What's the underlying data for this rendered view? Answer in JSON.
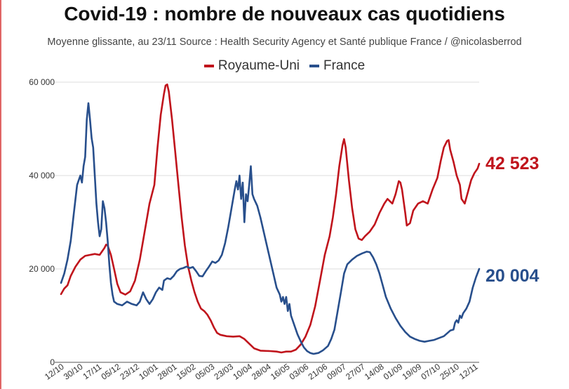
{
  "title": "Covid-19 : nombre de nouveaux cas quotidiens",
  "subtitle": "Moyenne glissante, au 23/11 Source : Health Security Agency et Santé publique France  / @nicolasberrod",
  "colors": {
    "uk": "#c0141c",
    "france": "#284f8c",
    "grid": "#dcdcdc"
  },
  "chart_data": {
    "type": "line",
    "title": "Covid-19 : nombre de nouveaux cas quotidiens",
    "ylim": [
      0,
      60000
    ],
    "y_ticks": [
      0,
      20000,
      40000,
      60000
    ],
    "y_tick_labels": [
      "0",
      "20 000",
      "40 000",
      "60 000"
    ],
    "x_ticks": [
      "12/10",
      "30/10",
      "17/11",
      "05/12",
      "23/12",
      "10/01",
      "28/01",
      "15/02",
      "05/03",
      "23/03",
      "10/04",
      "28/04",
      "16/05",
      "03/06",
      "21/06",
      "09/07",
      "27/07",
      "14/08",
      "01/09",
      "19/09",
      "07/10",
      "25/10",
      "12/11"
    ],
    "legend": [
      "Royaume-Uni",
      "France"
    ],
    "series": [
      {
        "name": "Royaume-Uni",
        "color": "#c0141c",
        "end_label": "42 523",
        "points": [
          [
            0,
            14600
          ],
          [
            2,
            15800
          ],
          [
            4,
            16500
          ],
          [
            6,
            18500
          ],
          [
            9,
            20500
          ],
          [
            12,
            22000
          ],
          [
            15,
            22800
          ],
          [
            18,
            23000
          ],
          [
            21,
            23200
          ],
          [
            24,
            23000
          ],
          [
            27,
            24500
          ],
          [
            28,
            25200
          ],
          [
            29,
            25000
          ],
          [
            31,
            23000
          ],
          [
            33,
            20000
          ],
          [
            35,
            16800
          ],
          [
            37,
            15000
          ],
          [
            40,
            14500
          ],
          [
            43,
            15200
          ],
          [
            46,
            17500
          ],
          [
            49,
            22000
          ],
          [
            52,
            28000
          ],
          [
            55,
            34000
          ],
          [
            58,
            38000
          ],
          [
            60,
            46000
          ],
          [
            62,
            53000
          ],
          [
            64,
            57500
          ],
          [
            65,
            59300
          ],
          [
            66,
            59500
          ],
          [
            67,
            58000
          ],
          [
            69,
            52000
          ],
          [
            71,
            45000
          ],
          [
            73,
            38000
          ],
          [
            75,
            31000
          ],
          [
            77,
            25000
          ],
          [
            79,
            20500
          ],
          [
            81,
            17500
          ],
          [
            83,
            15000
          ],
          [
            85,
            13000
          ],
          [
            87,
            11500
          ],
          [
            89,
            11000
          ],
          [
            91,
            10200
          ],
          [
            93,
            9000
          ],
          [
            95,
            7500
          ],
          [
            97,
            6300
          ],
          [
            99,
            5900
          ],
          [
            103,
            5600
          ],
          [
            107,
            5500
          ],
          [
            111,
            5600
          ],
          [
            114,
            5000
          ],
          [
            117,
            4000
          ],
          [
            120,
            3000
          ],
          [
            124,
            2500
          ],
          [
            130,
            2400
          ],
          [
            134,
            2300
          ],
          [
            137,
            2100
          ],
          [
            140,
            2300
          ],
          [
            143,
            2300
          ],
          [
            146,
            2700
          ],
          [
            149,
            3800
          ],
          [
            152,
            5500
          ],
          [
            155,
            8000
          ],
          [
            158,
            12000
          ],
          [
            161,
            17500
          ],
          [
            164,
            23000
          ],
          [
            167,
            27000
          ],
          [
            169,
            31000
          ],
          [
            171,
            36000
          ],
          [
            173,
            42000
          ],
          [
            175,
            46500
          ],
          [
            176,
            47800
          ],
          [
            177,
            46000
          ],
          [
            179,
            39000
          ],
          [
            181,
            33000
          ],
          [
            183,
            28500
          ],
          [
            185,
            26500
          ],
          [
            187,
            26200
          ],
          [
            189,
            27000
          ],
          [
            192,
            28000
          ],
          [
            195,
            29500
          ],
          [
            198,
            32000
          ],
          [
            201,
            34000
          ],
          [
            203,
            35000
          ],
          [
            206,
            34000
          ],
          [
            208,
            36000
          ],
          [
            210,
            38800
          ],
          [
            211,
            38500
          ],
          [
            212,
            37000
          ],
          [
            214,
            32000
          ],
          [
            215,
            29300
          ],
          [
            217,
            29800
          ],
          [
            219,
            32500
          ],
          [
            222,
            34000
          ],
          [
            225,
            34500
          ],
          [
            228,
            34000
          ],
          [
            231,
            37000
          ],
          [
            234,
            39500
          ],
          [
            236,
            43000
          ],
          [
            238,
            46000
          ],
          [
            240,
            47400
          ],
          [
            241,
            47600
          ],
          [
            242,
            45500
          ],
          [
            244,
            43000
          ],
          [
            246,
            40000
          ],
          [
            248,
            38000
          ],
          [
            249,
            35000
          ],
          [
            251,
            34000
          ],
          [
            253,
            36500
          ],
          [
            255,
            39000
          ],
          [
            257,
            40500
          ],
          [
            259,
            41500
          ],
          [
            260,
            42523
          ]
        ]
      },
      {
        "name": "France",
        "color": "#284f8c",
        "end_label": "20 004",
        "points": [
          [
            0,
            17000
          ],
          [
            2,
            19000
          ],
          [
            4,
            22000
          ],
          [
            6,
            26000
          ],
          [
            8,
            32000
          ],
          [
            10,
            38000
          ],
          [
            12,
            40000
          ],
          [
            13,
            38500
          ],
          [
            14,
            42000
          ],
          [
            15,
            44000
          ],
          [
            16,
            52000
          ],
          [
            17,
            55500
          ],
          [
            18,
            52000
          ],
          [
            19,
            48000
          ],
          [
            20,
            46000
          ],
          [
            21,
            40000
          ],
          [
            22,
            34000
          ],
          [
            23,
            30000
          ],
          [
            24,
            27000
          ],
          [
            25,
            28500
          ],
          [
            26,
            34500
          ],
          [
            27,
            33000
          ],
          [
            28,
            30000
          ],
          [
            29,
            26000
          ],
          [
            30,
            21000
          ],
          [
            31,
            17000
          ],
          [
            32,
            14500
          ],
          [
            33,
            13000
          ],
          [
            35,
            12500
          ],
          [
            38,
            12200
          ],
          [
            41,
            13000
          ],
          [
            44,
            12500
          ],
          [
            47,
            12200
          ],
          [
            49,
            13000
          ],
          [
            51,
            15000
          ],
          [
            53,
            13500
          ],
          [
            55,
            12500
          ],
          [
            57,
            13500
          ],
          [
            59,
            15000
          ],
          [
            61,
            16000
          ],
          [
            63,
            15500
          ],
          [
            64,
            17500
          ],
          [
            66,
            18000
          ],
          [
            68,
            17800
          ],
          [
            70,
            18500
          ],
          [
            72,
            19500
          ],
          [
            74,
            20000
          ],
          [
            76,
            20200
          ],
          [
            78,
            20500
          ],
          [
            80,
            20200
          ],
          [
            82,
            20400
          ],
          [
            84,
            19500
          ],
          [
            86,
            18500
          ],
          [
            88,
            18400
          ],
          [
            90,
            19500
          ],
          [
            92,
            20500
          ],
          [
            94,
            21600
          ],
          [
            96,
            21300
          ],
          [
            98,
            21800
          ],
          [
            100,
            23000
          ],
          [
            102,
            25500
          ],
          [
            104,
            29000
          ],
          [
            106,
            33000
          ],
          [
            108,
            37000
          ],
          [
            109,
            38800
          ],
          [
            110,
            37000
          ],
          [
            111,
            40000
          ],
          [
            112,
            35000
          ],
          [
            113,
            38500
          ],
          [
            114,
            30000
          ],
          [
            115,
            36000
          ],
          [
            116,
            34500
          ],
          [
            117,
            38000
          ],
          [
            118,
            42000
          ],
          [
            119,
            36000
          ],
          [
            120,
            35000
          ],
          [
            122,
            33500
          ],
          [
            124,
            31000
          ],
          [
            126,
            28000
          ],
          [
            128,
            25000
          ],
          [
            130,
            22000
          ],
          [
            132,
            19000
          ],
          [
            134,
            16000
          ],
          [
            136,
            14500
          ],
          [
            137,
            13000
          ],
          [
            138,
            14000
          ],
          [
            139,
            12500
          ],
          [
            140,
            14000
          ],
          [
            141,
            11000
          ],
          [
            142,
            12500
          ],
          [
            143,
            10000
          ],
          [
            145,
            8000
          ],
          [
            147,
            6000
          ],
          [
            149,
            4500
          ],
          [
            151,
            3200
          ],
          [
            153,
            2400
          ],
          [
            155,
            2000
          ],
          [
            157,
            1800
          ],
          [
            160,
            2000
          ],
          [
            163,
            2600
          ],
          [
            166,
            3500
          ],
          [
            168,
            5000
          ],
          [
            170,
            7000
          ],
          [
            172,
            11000
          ],
          [
            174,
            15000
          ],
          [
            176,
            19000
          ],
          [
            178,
            21000
          ],
          [
            181,
            22000
          ],
          [
            184,
            22800
          ],
          [
            187,
            23300
          ],
          [
            190,
            23700
          ],
          [
            192,
            23600
          ],
          [
            194,
            22500
          ],
          [
            196,
            21000
          ],
          [
            198,
            19000
          ],
          [
            200,
            16500
          ],
          [
            202,
            14000
          ],
          [
            205,
            11500
          ],
          [
            208,
            9500
          ],
          [
            211,
            7800
          ],
          [
            214,
            6500
          ],
          [
            217,
            5500
          ],
          [
            220,
            5000
          ],
          [
            223,
            4600
          ],
          [
            226,
            4400
          ],
          [
            229,
            4600
          ],
          [
            232,
            4800
          ],
          [
            235,
            5200
          ],
          [
            238,
            5600
          ],
          [
            240,
            6200
          ],
          [
            242,
            6800
          ],
          [
            244,
            7000
          ],
          [
            245,
            8500
          ],
          [
            246,
            9000
          ],
          [
            247,
            8500
          ],
          [
            248,
            10000
          ],
          [
            249,
            9500
          ],
          [
            250,
            10500
          ],
          [
            252,
            11500
          ],
          [
            254,
            13000
          ],
          [
            256,
            16000
          ],
          [
            258,
            18200
          ],
          [
            260,
            20004
          ]
        ]
      }
    ]
  }
}
